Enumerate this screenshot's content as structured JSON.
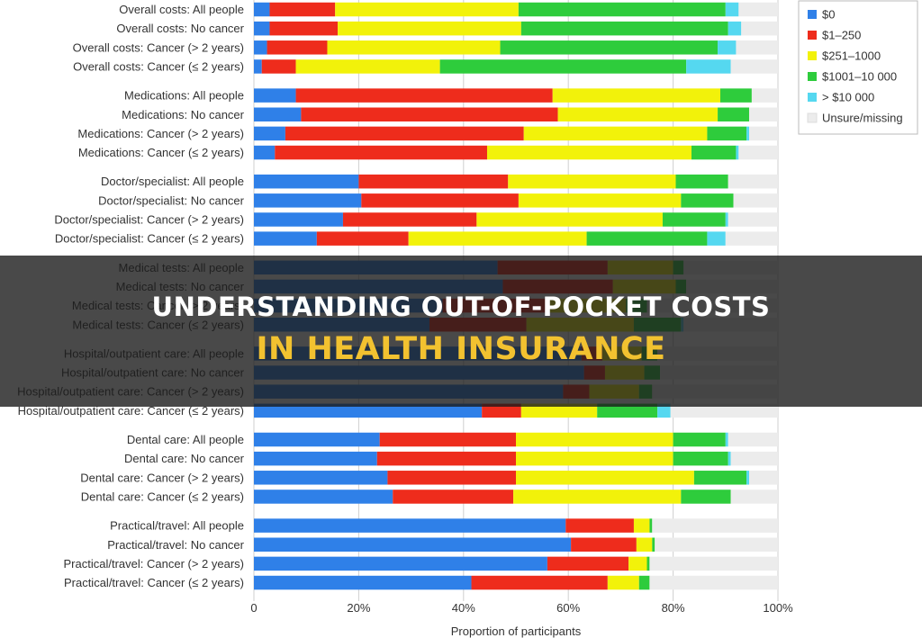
{
  "chart_data": {
    "type": "bar",
    "orientation": "horizontal",
    "stacked": true,
    "xlabel": "Proportion of participants",
    "xlim": [
      0,
      100
    ],
    "xticks": [
      "0",
      "20%",
      "40%",
      "60%",
      "80%",
      "100%"
    ],
    "grid": true,
    "legend_position": "top-right",
    "categories": [
      "Overall costs: All people",
      "Overall costs: No cancer",
      "Overall costs: Cancer (> 2 years)",
      "Overall costs: Cancer (≤ 2 years)",
      "Medications: All people",
      "Medications: No cancer",
      "Medications: Cancer (> 2 years)",
      "Medications: Cancer (≤ 2 years)",
      "Doctor/specialist: All people",
      "Doctor/specialist: No cancer",
      "Doctor/specialist: Cancer (> 2 years)",
      "Doctor/specialist: Cancer (≤ 2 years)",
      "Medical tests: All people",
      "Medical tests: No cancer",
      "Medical tests: Cancer (> 2 years)",
      "Medical tests: Cancer (≤ 2 years)",
      "Hospital/outpatient care: All people",
      "Hospital/outpatient care: No cancer",
      "Hospital/outpatient care: Cancer (> 2 years)",
      "Hospital/outpatient care: Cancer (≤ 2 years)",
      "Dental care: All people",
      "Dental care: No cancer",
      "Dental care: Cancer (> 2 years)",
      "Dental care: Cancer (≤ 2 years)",
      "Practical/travel: All people",
      "Practical/travel: No cancer",
      "Practical/travel: Cancer (> 2 years)",
      "Practical/travel: Cancer (≤ 2 years)"
    ],
    "series": [
      {
        "name": "$0",
        "color": "#2f80e8",
        "values": [
          3,
          3,
          2.5,
          1.5,
          8,
          9,
          6,
          4,
          20,
          20.5,
          17,
          12,
          46.5,
          47.5,
          36,
          33.5,
          62.5,
          63,
          59,
          43.5,
          24,
          23.5,
          25.5,
          26.5,
          59.5,
          60.5,
          56,
          41.5
        ]
      },
      {
        "name": "$1–250",
        "color": "#ee2c1c",
        "values": [
          12.5,
          13,
          11.5,
          6.5,
          49,
          49,
          45.5,
          40.5,
          28.5,
          30,
          25.5,
          17.5,
          21,
          21,
          20,
          18.5,
          4,
          4,
          5,
          7.5,
          26,
          26.5,
          24.5,
          23,
          13,
          12.5,
          15.5,
          26
        ]
      },
      {
        "name": "$251–1000",
        "color": "#f2f20a",
        "values": [
          35,
          35,
          33,
          27.5,
          32,
          30.5,
          35,
          39,
          32,
          31,
          35.5,
          34,
          12.5,
          12,
          15,
          20.5,
          7.5,
          7.5,
          9.5,
          14.5,
          30,
          30,
          34,
          32,
          3,
          3,
          3.5,
          6
        ]
      },
      {
        "name": "$1001–10 000",
        "color": "#2ecc3c",
        "values": [
          39.5,
          39.5,
          41.5,
          47,
          6,
          6,
          7.5,
          8.5,
          10,
          10,
          12,
          23,
          2,
          2,
          4,
          9,
          3,
          3,
          2.5,
          11.5,
          10,
          10.5,
          10,
          9.5,
          0.5,
          0.5,
          0.5,
          2
        ]
      },
      {
        "name": "> $10 000",
        "color": "#55d8f0",
        "values": [
          2.5,
          2.5,
          3.5,
          8.5,
          0,
          0,
          0.5,
          0.5,
          0,
          0,
          0.5,
          3.5,
          0,
          0,
          0,
          0.5,
          0,
          0,
          0,
          2.5,
          0.5,
          0.5,
          0.5,
          0,
          0,
          0,
          0,
          0
        ]
      },
      {
        "name": "Unsure/missing",
        "color": "#ececec",
        "values": [
          7.5,
          7,
          8,
          9,
          5,
          5.5,
          5.5,
          7.5,
          9.5,
          8.5,
          9.5,
          10,
          18,
          17.5,
          25,
          18,
          23,
          22.5,
          24,
          20.5,
          9.5,
          9,
          5.5,
          9,
          24,
          23.5,
          24.5,
          24.5
        ]
      }
    ]
  },
  "banner": {
    "line1": "UNDERSTANDING OUT-OF-POCKET COSTS",
    "line2": "IN HEALTH INSURANCE"
  }
}
